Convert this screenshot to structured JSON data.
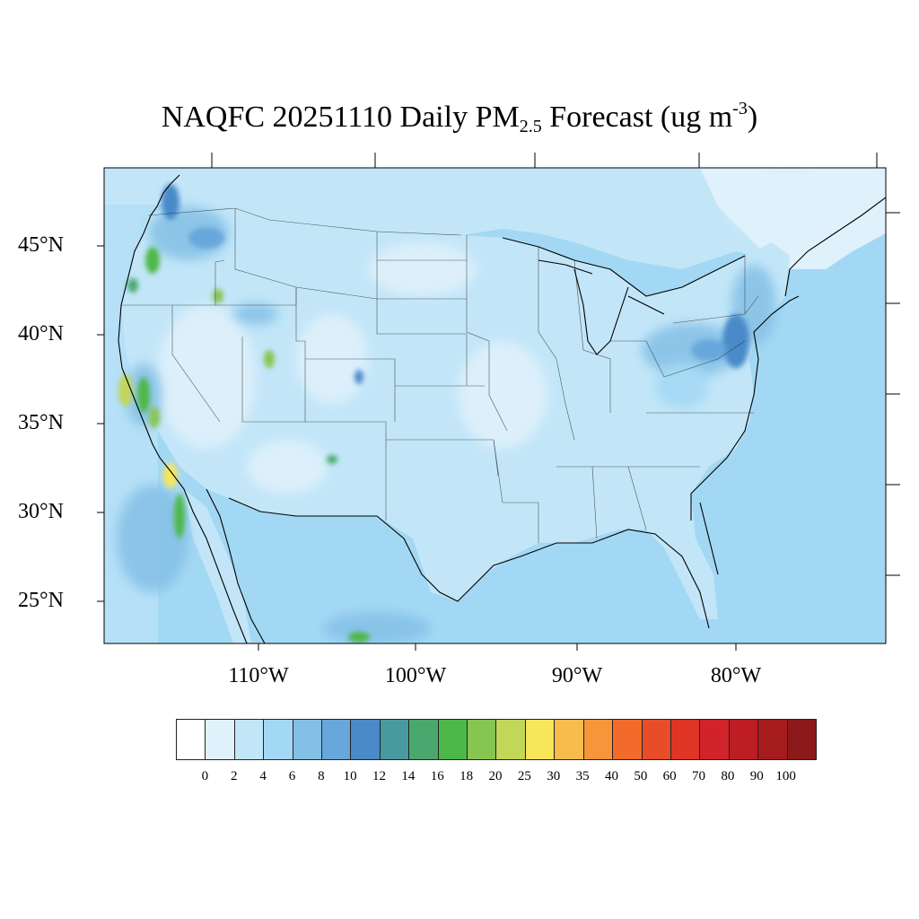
{
  "title": {
    "prefix": "NAQFC 20251110 Daily PM",
    "subscript": "2.5",
    "middle": " Forecast (ug m",
    "superscript": "-3",
    "suffix": ")"
  },
  "lat_labels": [
    "45°N",
    "40°N",
    "35°N",
    "30°N",
    "25°N"
  ],
  "lon_labels": [
    "110°W",
    "100°W",
    "90°W",
    "80°W"
  ],
  "colorbar": {
    "labels": [
      "0",
      "2",
      "4",
      "6",
      "8",
      "10",
      "12",
      "14",
      "16",
      "18",
      "20",
      "25",
      "30",
      "35",
      "40",
      "50",
      "60",
      "70",
      "80",
      "90",
      "100"
    ],
    "colors": [
      "#ffffff",
      "#dff1fb",
      "#c2e6f8",
      "#a3d8f4",
      "#84c0e6",
      "#67a7dc",
      "#4a8ac9",
      "#479b9e",
      "#4aa86e",
      "#4db84a",
      "#86c552",
      "#c2d758",
      "#f7e55a",
      "#f8bc4c",
      "#f69539",
      "#f26b2b",
      "#e84d2a",
      "#de3526",
      "#d1242a",
      "#bd1e24",
      "#a61b1d",
      "#8c1a1a"
    ]
  },
  "map": {
    "ocean_color": "#a3d8f4",
    "land_base_color": "#c2e6f8"
  }
}
